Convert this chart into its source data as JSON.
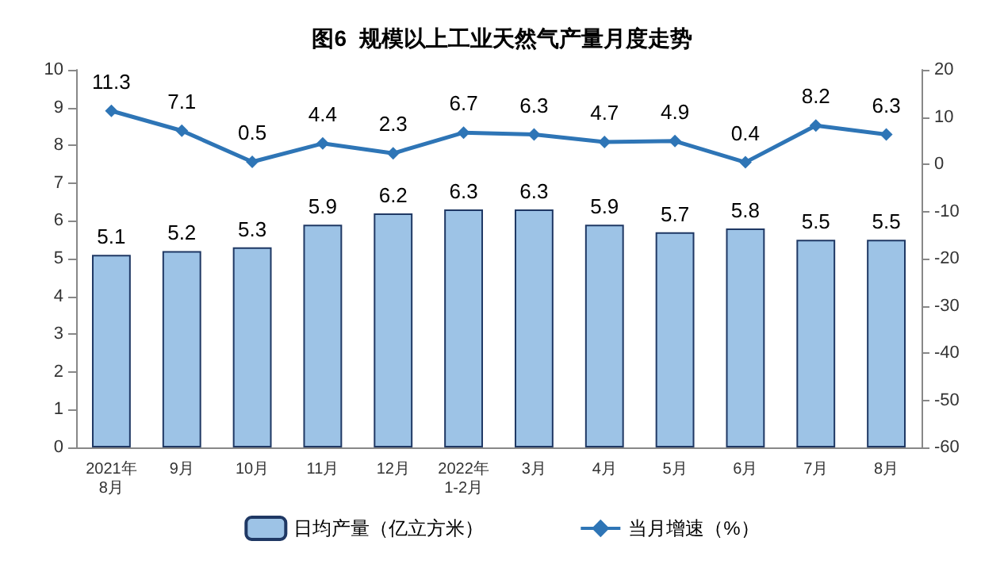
{
  "chart_data": {
    "type": "bar",
    "title": "图6  规模以上工业天然气产量月度走势",
    "categories": [
      "2021年\n8月",
      "9月",
      "10月",
      "11月",
      "12月",
      "2022年\n1-2月",
      "3月",
      "4月",
      "5月",
      "6月",
      "7月",
      "8月"
    ],
    "series": [
      {
        "name": "日均产量（亿立方米）",
        "color": "#9dc3e6",
        "values": [
          5.1,
          5.2,
          5.3,
          5.9,
          6.2,
          6.3,
          6.3,
          5.9,
          5.7,
          5.8,
          5.5,
          5.5
        ]
      },
      {
        "name": "当月增速（%）",
        "type": "line",
        "axis": "y2",
        "color": "#2e75b6",
        "values": [
          11.3,
          7.1,
          0.5,
          4.4,
          2.3,
          6.7,
          6.3,
          4.7,
          4.9,
          0.4,
          8.2,
          6.3
        ]
      }
    ],
    "ylim": [
      0,
      10
    ],
    "yticks": [
      0,
      1,
      2,
      3,
      4,
      5,
      6,
      7,
      8,
      9,
      10
    ],
    "y2lim": [
      -60,
      20
    ],
    "y2ticks": [
      -60,
      -50,
      -40,
      -30,
      -20,
      -10,
      0,
      10,
      20
    ],
    "data_labels": true,
    "grid": false,
    "legend": "bottom",
    "marker": "diamond",
    "line_style": "solid"
  }
}
